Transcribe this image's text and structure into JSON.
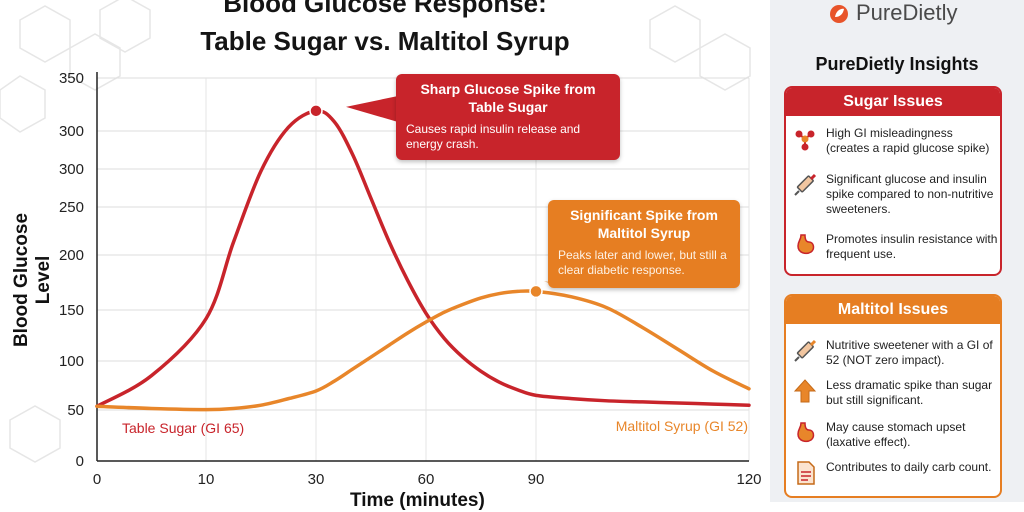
{
  "brand": {
    "name": "PureDietly"
  },
  "sidebar": {
    "heading": "PureDietly Insights",
    "sugar_card": {
      "title": "Sugar Issues",
      "items": [
        {
          "icon": "molecule-icon",
          "text": "High GI misleadingness (creates a rapid glucose spike)"
        },
        {
          "icon": "syringe-icon",
          "text": "Significant glucose and insulin spike compared to non-nutritive sweeteners."
        },
        {
          "icon": "stomach-icon",
          "text": "Promotes insulin resistance with frequent use."
        }
      ]
    },
    "maltitol_card": {
      "title": "Maltitol Issues",
      "items": [
        {
          "icon": "syringe-icon",
          "text": "Nutritive sweetener with a GI of 52 (NOT zero impact)."
        },
        {
          "icon": "arrow-up-icon",
          "text": "Less dramatic spike than sugar but still significant."
        },
        {
          "icon": "stomach-icon",
          "text": "May cause stomach upset (laxative effect)."
        },
        {
          "icon": "document-icon",
          "text": "Contributes to daily carb count."
        }
      ]
    }
  },
  "callouts": {
    "sugar": {
      "title": "Sharp Glucose Spike from Table Sugar",
      "body": "Causes rapid insulin release and energy crash."
    },
    "maltitol": {
      "title": "Significant Spike from Maltitol Syrup",
      "body": "Peaks later and lower, but still a clear diabetic response."
    }
  },
  "colors": {
    "sugar": "#c8242b",
    "maltitol": "#e8862a",
    "accent": "#c8242b"
  },
  "chart_data": {
    "type": "line",
    "title": "Blood Glucose Response: Table Sugar vs. Maltitol Syrup",
    "title_line1": "Blood Glucose Response:",
    "title_line2": "Table Sugar vs. Maltitol Syrup",
    "xlabel": "Time (minutes)",
    "ylabel": "Blood Glucose Level",
    "xlim": [
      0,
      120
    ],
    "ylim": [
      0,
      350
    ],
    "x_ticks": [
      0,
      10,
      30,
      60,
      90,
      120
    ],
    "x_tick_labels": [
      "0",
      "10",
      "30",
      "60",
      "90",
      "120"
    ],
    "y_tick_labels": [
      "0",
      "50",
      "100",
      "150",
      "200",
      "250",
      "300",
      "300",
      "350"
    ],
    "grid": true,
    "series": [
      {
        "name": "Table Sugar (GI 65)",
        "color": "#c8242b",
        "peak": {
          "x": 30,
          "y": 320
        },
        "x": [
          0,
          5,
          10,
          15,
          20,
          25,
          30,
          35,
          40,
          45,
          50,
          55,
          60,
          65,
          70,
          75,
          80,
          85,
          90,
          95,
          100,
          105,
          110,
          115,
          120
        ],
        "y": [
          50,
          78,
          130,
          200,
          265,
          305,
          320,
          310,
          280,
          240,
          200,
          165,
          135,
          112,
          95,
          82,
          72,
          65,
          60,
          57,
          55,
          54,
          53,
          52,
          51
        ]
      },
      {
        "name": "Maltitol Syrup (GI 52)",
        "color": "#e8862a",
        "peak": {
          "x": 90,
          "y": 155
        },
        "x": [
          0,
          5,
          10,
          15,
          20,
          25,
          30,
          35,
          40,
          45,
          50,
          55,
          60,
          65,
          70,
          75,
          80,
          85,
          90,
          95,
          100,
          105,
          110,
          115,
          120
        ],
        "y": [
          50,
          48,
          47,
          48,
          51,
          57,
          64,
          73,
          84,
          95,
          106,
          117,
          127,
          136,
          143,
          149,
          153,
          155,
          155,
          150,
          140,
          122,
          102,
          82,
          66
        ]
      }
    ]
  }
}
